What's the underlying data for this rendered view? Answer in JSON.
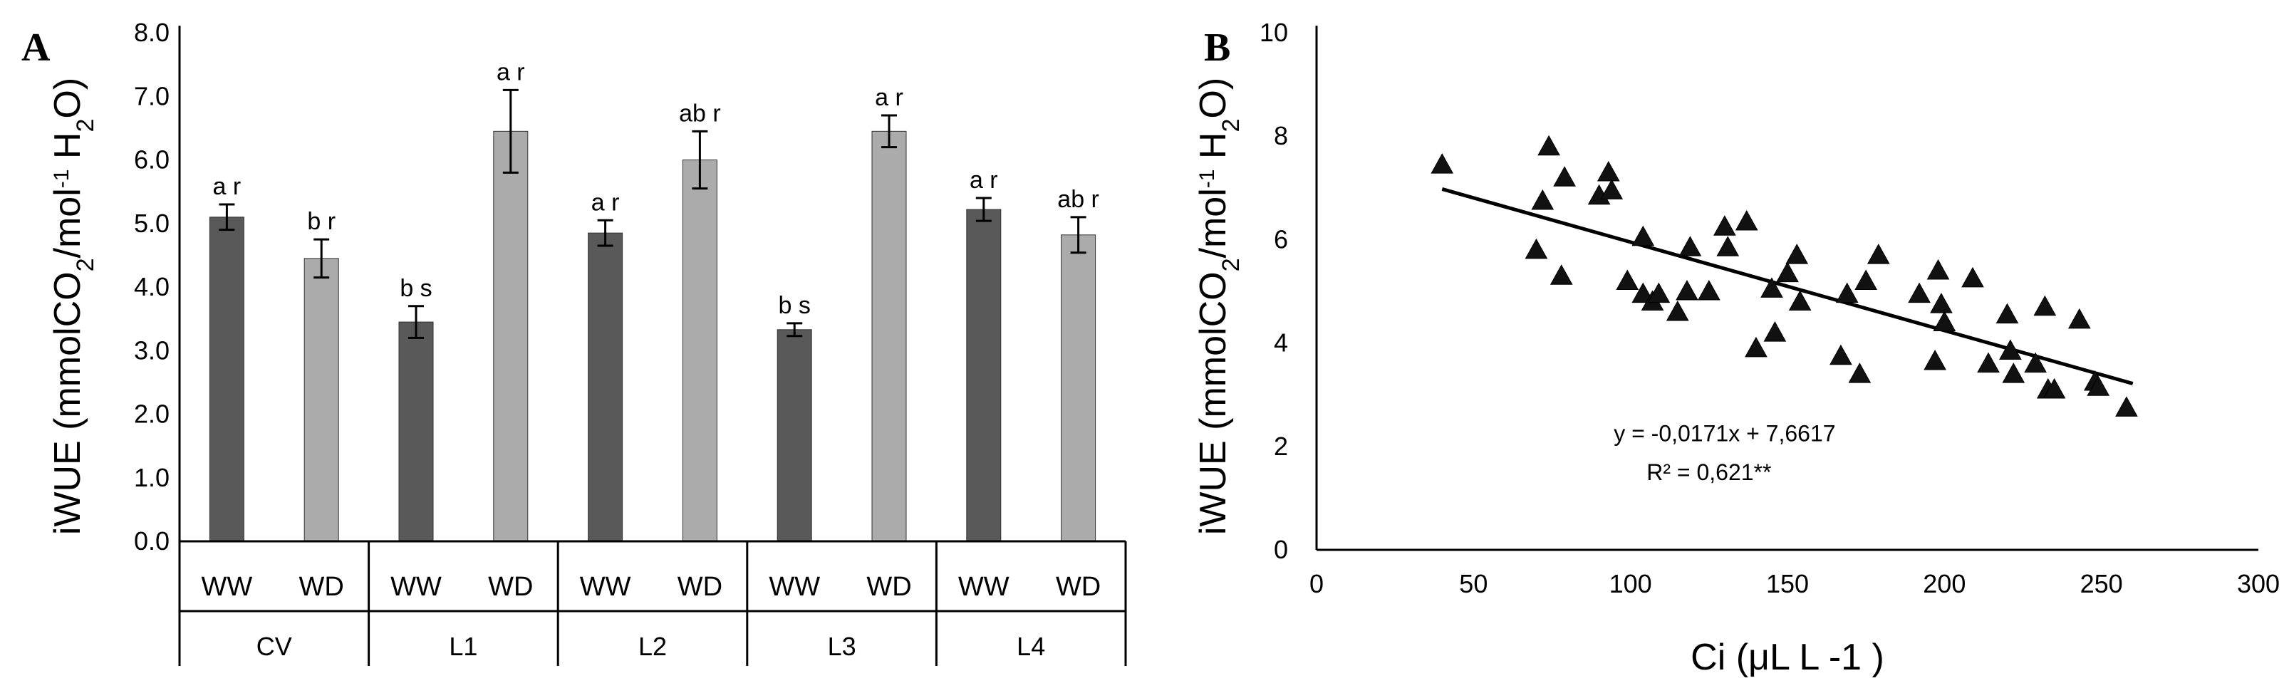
{
  "chart_data": [
    {
      "panel": "A",
      "type": "bar",
      "ylabel": "iWUE (mmolCO2/mol-1 H2O)",
      "ylim": [
        0,
        8
      ],
      "yticks": [
        "0.0",
        "1.0",
        "2.0",
        "3.0",
        "4.0",
        "5.0",
        "6.0",
        "7.0",
        "8.0"
      ],
      "groups": [
        "CV",
        "L1",
        "L2",
        "L3",
        "L4"
      ],
      "treatments": [
        "WW",
        "WD"
      ],
      "colors": {
        "WW": "#595959",
        "WD": "#ababab"
      },
      "bars": [
        {
          "group": "CV",
          "treatment": "WW",
          "value": 5.1,
          "error": 0.2,
          "label": "a r"
        },
        {
          "group": "CV",
          "treatment": "WD",
          "value": 4.45,
          "error": 0.3,
          "label": "b r"
        },
        {
          "group": "L1",
          "treatment": "WW",
          "value": 3.45,
          "error": 0.25,
          "label": "b s"
        },
        {
          "group": "L1",
          "treatment": "WD",
          "value": 6.45,
          "error": 0.65,
          "label": "a r"
        },
        {
          "group": "L2",
          "treatment": "WW",
          "value": 4.85,
          "error": 0.2,
          "label": "a r"
        },
        {
          "group": "L2",
          "treatment": "WD",
          "value": 6.0,
          "error": 0.45,
          "label": "ab r"
        },
        {
          "group": "L3",
          "treatment": "WW",
          "value": 3.33,
          "error": 0.1,
          "label": "b s"
        },
        {
          "group": "L3",
          "treatment": "WD",
          "value": 6.45,
          "error": 0.25,
          "label": "a r"
        },
        {
          "group": "L4",
          "treatment": "WW",
          "value": 5.22,
          "error": 0.18,
          "label": "a r"
        },
        {
          "group": "L4",
          "treatment": "WD",
          "value": 4.82,
          "error": 0.28,
          "label": "ab r"
        }
      ]
    },
    {
      "panel": "B",
      "type": "scatter",
      "xlabel": "Ci (μL L -1 )",
      "ylabel": "iWUE (mmolCO2/mol-1 H2O)",
      "xlim": [
        0,
        300
      ],
      "ylim": [
        0,
        10
      ],
      "xticks": [
        "0",
        "50",
        "100",
        "150",
        "200",
        "250",
        "300"
      ],
      "yticks": [
        "0",
        "2",
        "4",
        "6",
        "8",
        "10"
      ],
      "equation": "y = -0,0171x + 7,6617",
      "r2": "R² = 0,621**",
      "trendline": {
        "slope": -0.0171,
        "intercept": 7.6617,
        "x_range": [
          40,
          260
        ]
      },
      "points": [
        [
          40,
          7.45
        ],
        [
          70,
          5.8
        ],
        [
          72,
          6.75
        ],
        [
          74,
          7.8
        ],
        [
          78,
          5.3
        ],
        [
          79,
          7.2
        ],
        [
          90,
          6.85
        ],
        [
          93,
          7.3
        ],
        [
          94,
          6.95
        ],
        [
          99,
          5.2
        ],
        [
          104,
          6.05
        ],
        [
          104,
          4.95
        ],
        [
          107,
          4.8
        ],
        [
          109,
          4.95
        ],
        [
          115,
          4.6
        ],
        [
          118,
          5.0
        ],
        [
          119,
          5.85
        ],
        [
          125,
          5.0
        ],
        [
          130,
          6.25
        ],
        [
          131,
          5.85
        ],
        [
          137,
          6.35
        ],
        [
          140,
          3.9
        ],
        [
          145,
          5.05
        ],
        [
          146,
          4.2
        ],
        [
          150,
          5.35
        ],
        [
          153,
          5.7
        ],
        [
          154,
          4.8
        ],
        [
          167,
          3.75
        ],
        [
          169,
          4.95
        ],
        [
          173,
          3.4
        ],
        [
          175,
          5.2
        ],
        [
          179,
          5.7
        ],
        [
          192,
          4.95
        ],
        [
          197,
          3.65
        ],
        [
          198,
          5.4
        ],
        [
          199,
          4.75
        ],
        [
          200,
          4.4
        ],
        [
          209,
          5.25
        ],
        [
          214,
          3.6
        ],
        [
          220,
          4.55
        ],
        [
          221,
          3.85
        ],
        [
          222,
          3.4
        ],
        [
          229,
          3.6
        ],
        [
          232,
          4.7
        ],
        [
          233,
          3.1
        ],
        [
          235,
          3.1
        ],
        [
          243,
          4.45
        ],
        [
          248,
          3.25
        ],
        [
          249,
          3.15
        ],
        [
          258,
          2.75
        ]
      ]
    }
  ]
}
